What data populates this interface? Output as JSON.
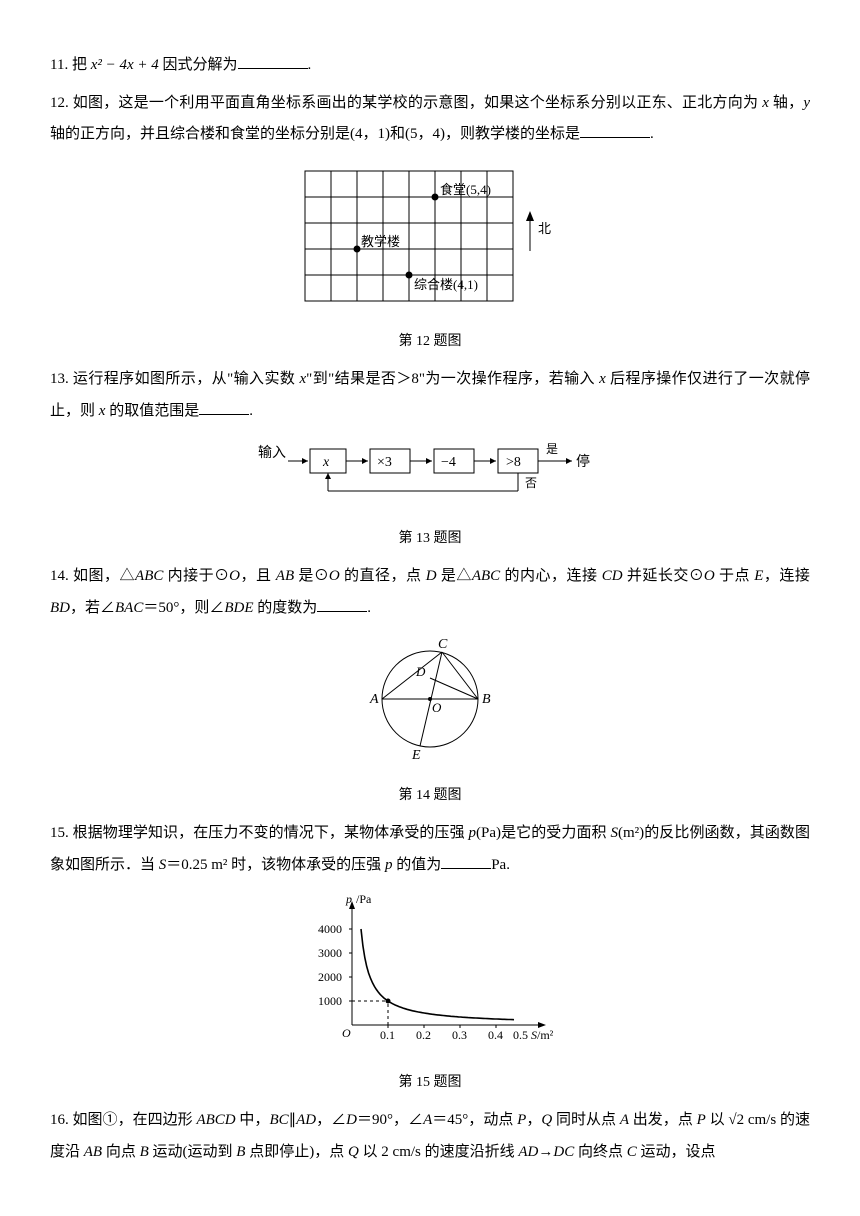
{
  "q11": {
    "text_a": "11. 把 ",
    "expr": "x² − 4x + 4",
    "text_b": " 因式分解为",
    "text_c": "."
  },
  "q12": {
    "text_a": "12. 如图，这是一个利用平面直角坐标系画出的某学校的示意图，如果这个坐标系分别以正东、正北方向为 ",
    "text_b": "x",
    "text_c": " 轴，",
    "text_d": "y",
    "text_e": " 轴的正方向，并且综合楼和食堂的坐标分别是(4，1)和(5，4)，则教学楼的坐标是",
    "text_f": ".",
    "caption": "第 12 题图",
    "fig": {
      "rows": 5,
      "cols": 8,
      "cell": 26,
      "label_shitang": "食堂(5,4)",
      "label_jiaoxue": "教学楼",
      "label_zonghe": "综合楼(4,1)",
      "label_north": "北",
      "stroke": "#000"
    }
  },
  "q13": {
    "text_a": "13. 运行程序如图所示，从\"输入实数 ",
    "text_b": "x",
    "text_c": "\"到\"结果是否＞8\"为一次操作程序，若输入 ",
    "text_d": "x",
    "text_e": " 后程序操作仅进行了一次就停止，则 ",
    "text_f": "x",
    "text_g": " 的取值范围是",
    "text_h": ".",
    "caption": "第 13 题图",
    "fig": {
      "label_input": "输入",
      "box1": "x",
      "box2": "×3",
      "box3": "−4",
      "box4": ">8",
      "label_yes": "是",
      "label_no": "否",
      "label_stop": "停"
    }
  },
  "q14": {
    "text_a": "14. 如图，△",
    "t1": "ABC",
    "text_b": " 内接于⊙",
    "t2": "O",
    "text_c": "，且 ",
    "t3": "AB",
    "text_d": " 是⊙",
    "t4": "O",
    "text_e": " 的直径，点 ",
    "t5": "D",
    "text_f": " 是△",
    "t6": "ABC",
    "text_g": " 的内心，连接 ",
    "t7": "CD",
    "text_h": " 并延长交⊙",
    "t8": "O",
    "text_i": " 于点 ",
    "t9": "E",
    "text_j": "，连接 ",
    "t10": "BD",
    "text_k": "，若∠",
    "t11": "BAC",
    "text_l": "＝50°，则∠",
    "t12": "BDE",
    "text_m": " 的度数为",
    "text_n": ".",
    "caption": "第 14 题图"
  },
  "q15": {
    "text_a": "15. 根据物理学知识，在压力不变的情况下，某物体承受的压强 ",
    "t1": "p",
    "text_b": "(Pa)是它的受力面积 ",
    "t2": "S",
    "text_c": "(m²)的反比例函数，其函数图象如图所示．当 ",
    "t3": "S",
    "text_d": "＝0.25 m² 时，该物体承受的压强 ",
    "t4": "p",
    "text_e": " 的值为",
    "text_f": "Pa.",
    "caption": "第 15 题图",
    "fig": {
      "ylabel": "p/Pa",
      "xlabel": "0.5 S/m²",
      "yticks": [
        "1000",
        "2000",
        "3000",
        "4000"
      ],
      "xticks": [
        "0.1",
        "0.2",
        "0.3",
        "0.4"
      ],
      "origin": "O",
      "point_x": 0.1,
      "point_y": 1000,
      "k": 100,
      "xmax": 0.5,
      "ymax": 4500,
      "axis_color": "#000",
      "curve_color": "#000",
      "dash_color": "#000"
    }
  },
  "q16": {
    "text_a": "16. 如图①，在四边形 ",
    "t1": "ABCD",
    "text_b": " 中，",
    "t2": "BC",
    "text_c": "∥",
    "t3": "AD",
    "text_d": "，∠",
    "t4": "D",
    "text_e": "＝90°，∠",
    "t5": "A",
    "text_f": "＝45°，动点 ",
    "t6": "P",
    "text_g": "，",
    "t7": "Q",
    "text_h": " 同时从点 ",
    "t8": "A",
    "text_i": " 出发，点 ",
    "t9": "P",
    "text_j": " 以 √2 cm/s 的速度沿 ",
    "t10": "AB",
    "text_k": " 向点 ",
    "t11": "B",
    "text_l": " 运动(运动到 ",
    "t12": "B",
    "text_m": " 点即停止)，点 ",
    "t13": "Q",
    "text_n": " 以 2 cm/s 的速度沿折线 ",
    "t14": "AD",
    "text_o": "→",
    "t15": "DC",
    "text_p": " 向终点 ",
    "t16": "C",
    "text_q": " 运动，设点"
  }
}
